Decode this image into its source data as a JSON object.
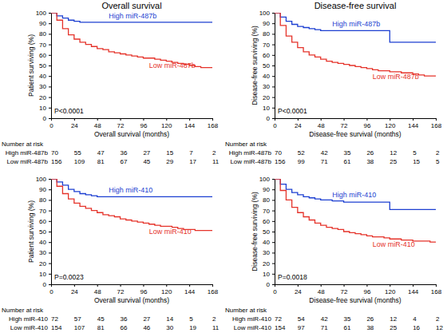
{
  "chart_data": [
    {
      "type": "line",
      "title": "Overall survival",
      "x_label": "Overall survival (months)",
      "y_label": "Patient surviving (%)",
      "annotation": "P<0.0001",
      "at_risk_title": "Number at risk",
      "x": [
        0,
        6,
        12,
        18,
        24,
        30,
        36,
        42,
        48,
        54,
        60,
        66,
        72,
        78,
        84,
        90,
        96,
        102,
        108,
        114,
        120,
        126,
        132,
        138,
        144,
        150,
        156,
        162,
        168
      ],
      "xlim": [
        0,
        168
      ],
      "xticks": [
        0,
        24,
        48,
        72,
        96,
        120,
        144,
        168
      ],
      "ylim": [
        0,
        100
      ],
      "yticks": [
        0,
        10,
        20,
        30,
        40,
        50,
        60,
        70,
        80,
        90,
        100
      ],
      "series": [
        {
          "name": "High miR-487b",
          "color": "#1c3fd1",
          "line_style": "step",
          "values": [
            100,
            97,
            95,
            93,
            92,
            91,
            91,
            91,
            91,
            91,
            91,
            91,
            91,
            91,
            91,
            91,
            91,
            91,
            91,
            91,
            91,
            91,
            91,
            91,
            91,
            91,
            91,
            91,
            91
          ],
          "at_risk": [
            70,
            55,
            47,
            36,
            27,
            15,
            7,
            2
          ]
        },
        {
          "name": "Low miR-487b",
          "color": "#e5332a",
          "line_style": "step",
          "values": [
            100,
            93,
            85,
            79,
            75,
            72,
            70,
            68,
            66,
            65,
            63,
            62,
            61,
            60,
            59,
            58,
            57,
            57,
            56,
            55,
            54,
            53,
            52,
            51,
            50,
            49,
            48,
            48,
            48
          ],
          "at_risk": [
            156,
            109,
            81,
            67,
            45,
            29,
            17,
            11
          ]
        }
      ]
    },
    {
      "type": "line",
      "title": "Disease-free survival",
      "x_label": "Disease-free survival (months)",
      "y_label": "Disease-free surviving (%)",
      "annotation": "P<0.0001",
      "at_risk_title": "Number at risk",
      "x": [
        0,
        6,
        12,
        18,
        24,
        30,
        36,
        42,
        48,
        54,
        60,
        66,
        72,
        78,
        84,
        90,
        96,
        102,
        108,
        114,
        120,
        126,
        132,
        138,
        144,
        150,
        156,
        162,
        168
      ],
      "xlim": [
        0,
        168
      ],
      "xticks": [
        0,
        24,
        48,
        72,
        96,
        120,
        144,
        168
      ],
      "ylim": [
        0,
        100
      ],
      "yticks": [
        0,
        10,
        20,
        30,
        40,
        50,
        60,
        70,
        80,
        90,
        100
      ],
      "series": [
        {
          "name": "High miR-487b",
          "color": "#1c3fd1",
          "line_style": "step",
          "values": [
            100,
            96,
            92,
            89,
            87,
            86,
            85,
            84,
            83,
            83,
            83,
            83,
            83,
            83,
            83,
            83,
            83,
            83,
            83,
            83,
            72,
            72,
            72,
            72,
            72,
            72,
            72,
            72,
            72
          ],
          "at_risk": [
            70,
            52,
            42,
            35,
            26,
            12,
            5,
            2
          ]
        },
        {
          "name": "Low miR-487b",
          "color": "#e5332a",
          "line_style": "step",
          "values": [
            100,
            88,
            78,
            72,
            67,
            63,
            60,
            58,
            56,
            54,
            53,
            52,
            51,
            50,
            49,
            48,
            47,
            46,
            45,
            45,
            44,
            44,
            43,
            43,
            42,
            41,
            40,
            40,
            40
          ],
          "at_risk": [
            156,
            99,
            71,
            61,
            38,
            25,
            15,
            5
          ]
        }
      ]
    },
    {
      "type": "line",
      "x_label": "Overall survival (months)",
      "y_label": "Patient surviving (%)",
      "annotation": "P=0.0023",
      "at_risk_title": "Number at risk",
      "x": [
        0,
        6,
        12,
        18,
        24,
        30,
        36,
        42,
        48,
        54,
        60,
        66,
        72,
        78,
        84,
        90,
        96,
        102,
        108,
        114,
        120,
        126,
        132,
        138,
        144,
        150,
        156,
        162,
        168
      ],
      "xlim": [
        0,
        168
      ],
      "xticks": [
        0,
        24,
        48,
        72,
        96,
        120,
        144,
        168
      ],
      "ylim": [
        0,
        100
      ],
      "yticks": [
        0,
        10,
        20,
        30,
        40,
        50,
        60,
        70,
        80,
        90,
        100
      ],
      "series": [
        {
          "name": "High miR-410",
          "color": "#1c3fd1",
          "line_style": "step",
          "values": [
            100,
            97,
            94,
            90,
            88,
            86,
            85,
            84,
            83,
            83,
            83,
            83,
            83,
            83,
            83,
            83,
            83,
            83,
            83,
            83,
            83,
            83,
            83,
            83,
            83,
            83,
            83,
            83,
            83
          ],
          "at_risk": [
            72,
            57,
            45,
            36,
            27,
            14,
            5,
            2
          ]
        },
        {
          "name": "Low miR-410",
          "color": "#e5332a",
          "line_style": "step",
          "values": [
            100,
            93,
            86,
            81,
            77,
            74,
            72,
            70,
            68,
            66,
            65,
            64,
            62,
            61,
            60,
            59,
            58,
            57,
            56,
            55,
            55,
            54,
            53,
            52,
            52,
            51,
            51,
            51,
            51
          ],
          "at_risk": [
            154,
            107,
            81,
            66,
            46,
            30,
            19,
            11
          ]
        }
      ]
    },
    {
      "type": "line",
      "x_label": "Disease-free survival (months)",
      "y_label": "Disease-free surviving (%)",
      "annotation": "P=0.0018",
      "at_risk_title": "Number at risk",
      "x": [
        0,
        6,
        12,
        18,
        24,
        30,
        36,
        42,
        48,
        54,
        60,
        66,
        72,
        78,
        84,
        90,
        96,
        102,
        108,
        114,
        120,
        126,
        132,
        138,
        144,
        150,
        156,
        162,
        168
      ],
      "xlim": [
        0,
        168
      ],
      "xticks": [
        0,
        24,
        48,
        72,
        96,
        120,
        144,
        168
      ],
      "ylim": [
        0,
        100
      ],
      "yticks": [
        0,
        10,
        20,
        30,
        40,
        50,
        60,
        70,
        80,
        90,
        100
      ],
      "series": [
        {
          "name": "High miR-410",
          "color": "#1c3fd1",
          "line_style": "step",
          "values": [
            100,
            95,
            90,
            87,
            85,
            83,
            82,
            81,
            80,
            80,
            79,
            79,
            78,
            78,
            78,
            78,
            78,
            78,
            78,
            78,
            71,
            71,
            71,
            71,
            71,
            71,
            71,
            71,
            71
          ],
          "at_risk": [
            72,
            54,
            42,
            35,
            26,
            12,
            4,
            2
          ]
        },
        {
          "name": "Low miR-410",
          "color": "#e5332a",
          "line_style": "step",
          "values": [
            100,
            89,
            80,
            73,
            68,
            64,
            61,
            58,
            56,
            54,
            53,
            52,
            50,
            49,
            48,
            47,
            46,
            45,
            45,
            44,
            43,
            43,
            42,
            42,
            41,
            41,
            41,
            40,
            40
          ],
          "at_risk": [
            154,
            97,
            71,
            61,
            38,
            25,
            16,
            12
          ]
        }
      ]
    }
  ]
}
